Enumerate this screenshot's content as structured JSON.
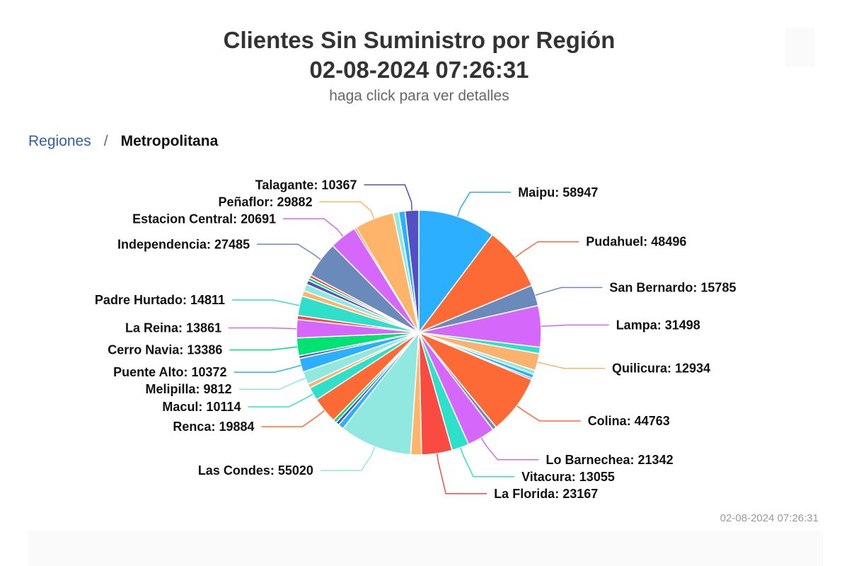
{
  "header": {
    "title": "Clientes Sin Suministro por Región",
    "datetime": "02-08-2024 07:26:31",
    "subtitle": "haga click para ver detalles"
  },
  "breadcrumb": {
    "parent": "Regiones",
    "separator": "/",
    "current": "Metropolitana"
  },
  "credits": "02-08-2024 07:26:31",
  "chart_data": {
    "type": "pie",
    "title": "Clientes Sin Suministro por Región 02-08-2024 07:26:31",
    "subtitle": "haga click para ver detalles",
    "slices": [
      {
        "name": "Maipu",
        "value": 58947,
        "color": "#2caffe",
        "label": true,
        "side": "right"
      },
      {
        "name": "Pudahuel",
        "value": 48496,
        "color": "#fe6a35",
        "label": true,
        "side": "right"
      },
      {
        "name": "San Bernardo",
        "value": 15785,
        "color": "#6b8abc",
        "label": true,
        "side": "right"
      },
      {
        "name": "Lampa",
        "value": 31498,
        "color": "#d568fb",
        "label": true,
        "side": "right"
      },
      {
        "name": "",
        "value": 4800,
        "color": "#2ee0ca",
        "label": false
      },
      {
        "name": "Quilicura",
        "value": 12934,
        "color": "#fbb26d",
        "label": true,
        "side": "right"
      },
      {
        "name": "",
        "value": 3200,
        "color": "#91e8e1",
        "label": false
      },
      {
        "name": "",
        "value": 3000,
        "color": "#2caffe",
        "label": false
      },
      {
        "name": "",
        "value": 1200,
        "color": "#544fc5",
        "label": false
      },
      {
        "name": "Colina",
        "value": 44763,
        "color": "#fe6a35",
        "label": true,
        "side": "right"
      },
      {
        "name": "",
        "value": 3000,
        "color": "#6b8abc",
        "label": false
      },
      {
        "name": "Lo Barnechea",
        "value": 21342,
        "color": "#d568fb",
        "label": true,
        "side": "right"
      },
      {
        "name": "Vitacura",
        "value": 13055,
        "color": "#2ee0ca",
        "label": true,
        "side": "right"
      },
      {
        "name": "La Florida",
        "value": 23167,
        "color": "#fa4b42",
        "label": true,
        "side": "right"
      },
      {
        "name": "",
        "value": 8200,
        "color": "#feb56a",
        "label": false
      },
      {
        "name": "Las Condes",
        "value": 55020,
        "color": "#91e8e1",
        "label": true,
        "side": "left"
      },
      {
        "name": "",
        "value": 4200,
        "color": "#2caffe",
        "label": false
      },
      {
        "name": "",
        "value": 2600,
        "color": "#544fc5",
        "label": false
      },
      {
        "name": "",
        "value": 2600,
        "color": "#00e272",
        "label": false
      },
      {
        "name": "Renca",
        "value": 19884,
        "color": "#fe6a35",
        "label": true,
        "side": "left"
      },
      {
        "name": "Macul",
        "value": 10114,
        "color": "#2ee0ca",
        "label": true,
        "side": "left"
      },
      {
        "name": "",
        "value": 3200,
        "color": "#fbb26d",
        "label": false
      },
      {
        "name": "Melipilla",
        "value": 9812,
        "color": "#91e8e1",
        "label": true,
        "side": "left"
      },
      {
        "name": "Puente Alto",
        "value": 10372,
        "color": "#2caffe",
        "label": true,
        "side": "left"
      },
      {
        "name": "",
        "value": 2200,
        "color": "#544fc5",
        "label": false
      },
      {
        "name": "Cerro Navia",
        "value": 13386,
        "color": "#00e272",
        "label": true,
        "side": "left"
      },
      {
        "name": "La Reina",
        "value": 13861,
        "color": "#d568fb",
        "label": true,
        "side": "left"
      },
      {
        "name": "",
        "value": 3100,
        "color": "#fa4b42",
        "label": false
      },
      {
        "name": "Padre Hurtado",
        "value": 14811,
        "color": "#2ee0ca",
        "label": true,
        "side": "left"
      },
      {
        "name": "",
        "value": 4200,
        "color": "#feb56a",
        "label": false
      },
      {
        "name": "",
        "value": 5200,
        "color": "#91e8e1",
        "label": false
      },
      {
        "name": "",
        "value": 3200,
        "color": "#544fc5",
        "label": false
      },
      {
        "name": "",
        "value": 2200,
        "color": "#00e272",
        "label": false
      },
      {
        "name": "",
        "value": 2200,
        "color": "#fa4b42",
        "label": false
      },
      {
        "name": "Independencia",
        "value": 27485,
        "color": "#6b8abc",
        "label": true,
        "side": "left"
      },
      {
        "name": "Estacion Central",
        "value": 20691,
        "color": "#d568fb",
        "label": true,
        "side": "left"
      },
      {
        "name": "",
        "value": 1500,
        "color": "#fe6a35",
        "label": false
      },
      {
        "name": "Peñaflor",
        "value": 29882,
        "color": "#feb56a",
        "label": true,
        "side": "left"
      },
      {
        "name": "",
        "value": 4200,
        "color": "#91e8e1",
        "label": false
      },
      {
        "name": "",
        "value": 4800,
        "color": "#2caffe",
        "label": false
      },
      {
        "name": "Talagante",
        "value": 10367,
        "color": "#544fc5",
        "label": true,
        "side": "left"
      }
    ]
  }
}
